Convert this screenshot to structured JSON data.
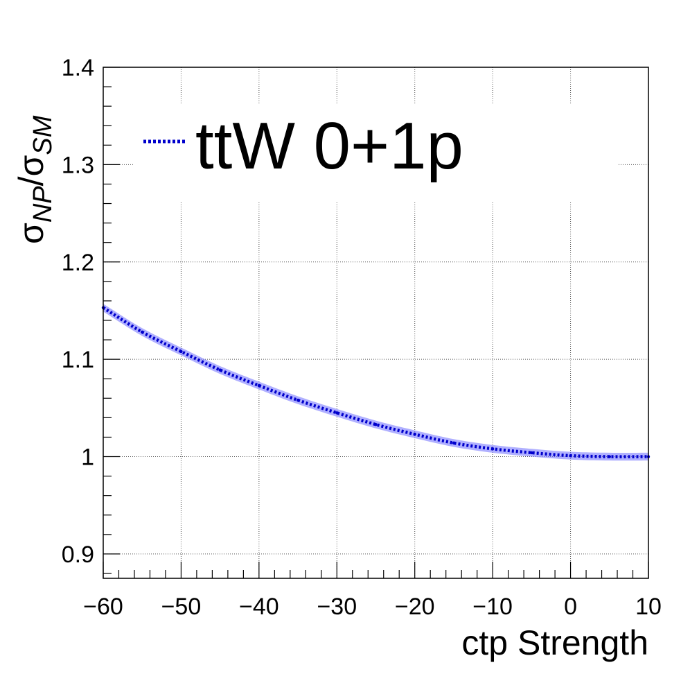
{
  "chart_data": {
    "type": "line",
    "title": "",
    "xlabel": "ctp Strength",
    "ylabel": {
      "symbol": "σ",
      "num_sub": "NP",
      "den_sub": "SM",
      "separator": "/"
    },
    "xlim": [
      -60,
      10
    ],
    "ylim": [
      0.875,
      1.4
    ],
    "x_ticks": [
      -60,
      -50,
      -40,
      -30,
      -20,
      -10,
      0,
      10
    ],
    "x_tick_labels": [
      "−60",
      "−50",
      "−40",
      "−30",
      "−20",
      "−10",
      "0",
      "10"
    ],
    "y_ticks": [
      0.9,
      1.0,
      1.1,
      1.2,
      1.3,
      1.4
    ],
    "y_tick_labels": [
      "0.9",
      "1",
      "1.1",
      "1.2",
      "1.3",
      "1.4"
    ],
    "grid": true,
    "legend_position": "top-left",
    "series": [
      {
        "name": "ttW 0+1p",
        "color": "#0000cc",
        "band_color": "#6f6fff",
        "line_style": "dotted",
        "x": [
          -60,
          -55,
          -50,
          -45,
          -40,
          -35,
          -30,
          -25,
          -20,
          -15,
          -10,
          -5,
          0,
          5,
          10
        ],
        "y": [
          1.153,
          1.128,
          1.108,
          1.089,
          1.073,
          1.058,
          1.045,
          1.033,
          1.023,
          1.014,
          1.008,
          1.004,
          1.001,
          1.0,
          1.0
        ],
        "band_halfwidth": 0.004
      }
    ]
  }
}
